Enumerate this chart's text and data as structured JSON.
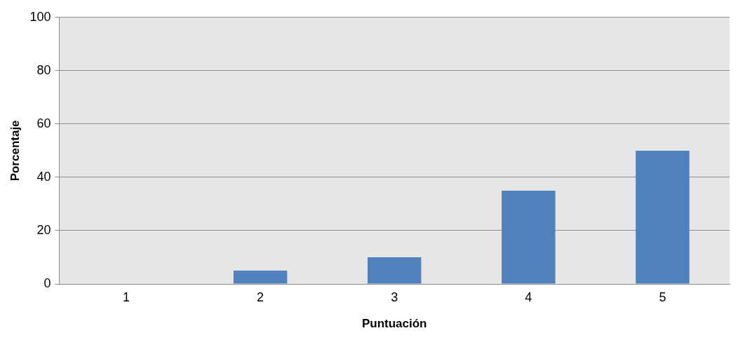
{
  "chart_data": {
    "type": "bar",
    "xlabel": "Puntuación",
    "ylabel": "Porcentaje",
    "categories": [
      "1",
      "2",
      "3",
      "4",
      "5"
    ],
    "values": [
      0,
      5,
      10,
      35,
      50
    ],
    "color": "#4f81bd",
    "ylim": [
      0,
      100
    ],
    "yticks": [
      0,
      20,
      40,
      60,
      80,
      100
    ],
    "grid": "y",
    "legend": false
  }
}
